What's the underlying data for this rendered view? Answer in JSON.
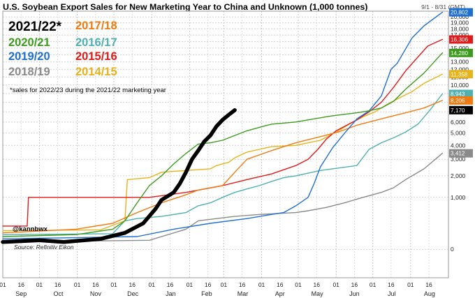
{
  "header": {
    "title": "U.S. Soybean Export Sales for New Marketing Year to China and Unknown (1,000 tonnes)",
    "date_range": "9/1 - 8/31 (GMT)"
  },
  "annotations": {
    "note": "*sales for 2022/23 during the 2021/22 marketing year",
    "handle": "@kannbwx",
    "source": "Source: Refinitiv Eikon"
  },
  "chart_data": {
    "type": "line",
    "title": "U.S. Soybean Export Sales for New Marketing Year to China and Unknown (1,000 tonnes)",
    "xlabel": "",
    "ylabel": "",
    "x_axis": {
      "day_ticks": [
        "01",
        "16",
        "01",
        "16",
        "01",
        "16",
        "01",
        "16",
        "01",
        "16",
        "01",
        "16",
        "01",
        "16",
        "01",
        "16",
        "01",
        "16",
        "01",
        "16",
        "01",
        "16",
        "01",
        "16"
      ],
      "months": [
        "Sep",
        "Oct",
        "Nov",
        "Dec",
        "Jan",
        "Feb",
        "Mar",
        "Apr",
        "May",
        "Jun",
        "Jul",
        "Aug"
      ]
    },
    "y_axis": {
      "ticks": [
        0,
        1000,
        2000,
        3000,
        4000,
        5000,
        6000,
        7000,
        8000,
        9000,
        10000,
        11000,
        12000,
        13000,
        14000,
        15000,
        16000,
        17000,
        18000,
        19000,
        20000
      ],
      "labels": [
        "0",
        "1,000",
        "2,000",
        "3,000",
        "4,000",
        "5,000",
        "6,000",
        "7,000",
        "8,000",
        "9,000",
        "10,000",
        "11,000",
        "12,000",
        "13,000",
        "14,000",
        "15,000",
        "16,000",
        "17,000",
        "18,000",
        "19,000",
        "20,000"
      ],
      "ylim": [
        -300,
        21000
      ],
      "scale": "sqrt",
      "position": "right"
    },
    "grid": true,
    "legend_placement": "top-left",
    "series": [
      {
        "name": "2014/15",
        "color": "#e8b21a",
        "end_label": "11,358",
        "width": 1.4,
        "points": [
          [
            0,
            130
          ],
          [
            80,
            140
          ],
          [
            100,
            300
          ],
          [
            102,
            1800
          ],
          [
            120,
            1900
          ],
          [
            130,
            2200
          ],
          [
            150,
            2300
          ],
          [
            170,
            2400
          ],
          [
            175,
            2600
          ],
          [
            185,
            2800
          ],
          [
            190,
            3100
          ],
          [
            200,
            3500
          ],
          [
            210,
            3700
          ],
          [
            220,
            3900
          ],
          [
            240,
            4000
          ],
          [
            250,
            4200
          ],
          [
            260,
            4400
          ],
          [
            275,
            5200
          ],
          [
            285,
            5900
          ],
          [
            295,
            6500
          ],
          [
            305,
            7000
          ],
          [
            315,
            7800
          ],
          [
            325,
            8500
          ],
          [
            335,
            9200
          ],
          [
            345,
            10200
          ],
          [
            360,
            11358
          ]
        ]
      },
      {
        "name": "2015/16",
        "color": "#e01a1a",
        "end_label": "16,306",
        "width": 1.4,
        "points": [
          [
            0,
            200
          ],
          [
            20,
            200
          ],
          [
            21,
            1000
          ],
          [
            120,
            1000
          ],
          [
            150,
            1200
          ],
          [
            180,
            1500
          ],
          [
            200,
            1800
          ],
          [
            220,
            2100
          ],
          [
            240,
            2600
          ],
          [
            250,
            3000
          ],
          [
            258,
            3700
          ],
          [
            265,
            4500
          ],
          [
            273,
            5200
          ],
          [
            280,
            5600
          ],
          [
            290,
            6200
          ],
          [
            300,
            7000
          ],
          [
            310,
            8000
          ],
          [
            320,
            9700
          ],
          [
            330,
            11800
          ],
          [
            340,
            13700
          ],
          [
            348,
            15300
          ],
          [
            360,
            16306
          ]
        ]
      },
      {
        "name": "2016/17",
        "color": "#4fb0b0",
        "end_label": "8,943",
        "width": 1.4,
        "points": [
          [
            0,
            80
          ],
          [
            90,
            90
          ],
          [
            100,
            300
          ],
          [
            110,
            350
          ],
          [
            130,
            400
          ],
          [
            150,
            500
          ],
          [
            160,
            700
          ],
          [
            170,
            800
          ],
          [
            180,
            1000
          ],
          [
            190,
            1200
          ],
          [
            200,
            1350
          ],
          [
            210,
            1500
          ],
          [
            220,
            1700
          ],
          [
            230,
            1900
          ],
          [
            240,
            2000
          ],
          [
            260,
            2300
          ],
          [
            290,
            2600
          ],
          [
            300,
            3700
          ],
          [
            310,
            4200
          ],
          [
            320,
            4600
          ],
          [
            330,
            5100
          ],
          [
            340,
            5800
          ],
          [
            350,
            7200
          ],
          [
            360,
            8943
          ]
        ]
      },
      {
        "name": "2017/18",
        "color": "#f07a10",
        "end_label": "8,206",
        "width": 1.4,
        "points": [
          [
            0,
            100
          ],
          [
            60,
            150
          ],
          [
            90,
            250
          ],
          [
            110,
            500
          ],
          [
            130,
            800
          ],
          [
            150,
            1100
          ],
          [
            160,
            1300
          ],
          [
            170,
            1400
          ],
          [
            180,
            1500
          ],
          [
            190,
            2200
          ],
          [
            200,
            3000
          ],
          [
            210,
            3300
          ],
          [
            220,
            3600
          ],
          [
            230,
            3900
          ],
          [
            240,
            4200
          ],
          [
            260,
            4700
          ],
          [
            275,
            5100
          ],
          [
            290,
            5700
          ],
          [
            300,
            6000
          ],
          [
            310,
            6300
          ],
          [
            320,
            6600
          ],
          [
            330,
            6900
          ],
          [
            345,
            7400
          ],
          [
            360,
            8206
          ]
        ]
      },
      {
        "name": "2018/19",
        "color": "#8a8a8a",
        "end_label": "3,412",
        "width": 1.4,
        "points": [
          [
            0,
            20
          ],
          [
            120,
            30
          ],
          [
            150,
            150
          ],
          [
            160,
            300
          ],
          [
            175,
            350
          ],
          [
            190,
            400
          ],
          [
            210,
            450
          ],
          [
            240,
            500
          ],
          [
            250,
            550
          ],
          [
            265,
            650
          ],
          [
            280,
            800
          ],
          [
            295,
            1000
          ],
          [
            310,
            1200
          ],
          [
            320,
            1400
          ],
          [
            330,
            1800
          ],
          [
            345,
            2400
          ],
          [
            360,
            3412
          ]
        ]
      },
      {
        "name": "2019/20",
        "color": "#1f6fd0",
        "end_label": "20,802",
        "width": 1.4,
        "points": [
          [
            0,
            40
          ],
          [
            110,
            60
          ],
          [
            140,
            150
          ],
          [
            170,
            250
          ],
          [
            200,
            350
          ],
          [
            220,
            450
          ],
          [
            230,
            500
          ],
          [
            240,
            700
          ],
          [
            250,
            1000
          ],
          [
            255,
            1600
          ],
          [
            260,
            2500
          ],
          [
            270,
            3800
          ],
          [
            280,
            5000
          ],
          [
            290,
            6300
          ],
          [
            300,
            7100
          ],
          [
            310,
            8700
          ],
          [
            318,
            12000
          ],
          [
            323,
            12800
          ],
          [
            335,
            16500
          ],
          [
            345,
            18500
          ],
          [
            360,
            20802
          ]
        ]
      },
      {
        "name": "2020/21",
        "color": "#3c9b1e",
        "end_label": "14,280",
        "width": 1.4,
        "points": [
          [
            0,
            60
          ],
          [
            60,
            80
          ],
          [
            90,
            150
          ],
          [
            100,
            300
          ],
          [
            110,
            800
          ],
          [
            120,
            1500
          ],
          [
            130,
            2000
          ],
          [
            140,
            2700
          ],
          [
            150,
            3400
          ],
          [
            160,
            4100
          ],
          [
            170,
            4200
          ],
          [
            180,
            4400
          ],
          [
            190,
            4800
          ],
          [
            200,
            5200
          ],
          [
            210,
            5500
          ],
          [
            220,
            5800
          ],
          [
            240,
            6000
          ],
          [
            250,
            6200
          ],
          [
            260,
            6400
          ],
          [
            270,
            6600
          ],
          [
            290,
            6900
          ],
          [
            300,
            7100
          ],
          [
            310,
            7400
          ],
          [
            320,
            8100
          ],
          [
            330,
            9500
          ],
          [
            345,
            11500
          ],
          [
            360,
            14280
          ]
        ]
      },
      {
        "name": "2021/22*",
        "color": "#000000",
        "end_label": "7,170",
        "width": 5.5,
        "points": [
          [
            0,
            20
          ],
          [
            30,
            30
          ],
          [
            50,
            20
          ],
          [
            80,
            40
          ],
          [
            100,
            100
          ],
          [
            115,
            250
          ],
          [
            125,
            600
          ],
          [
            130,
            900
          ],
          [
            140,
            1200
          ],
          [
            145,
            1600
          ],
          [
            150,
            2200
          ],
          [
            155,
            3000
          ],
          [
            160,
            3600
          ],
          [
            165,
            4300
          ],
          [
            170,
            4800
          ],
          [
            175,
            5600
          ],
          [
            180,
            6200
          ],
          [
            185,
            6700
          ],
          [
            190,
            7170
          ]
        ]
      }
    ]
  }
}
